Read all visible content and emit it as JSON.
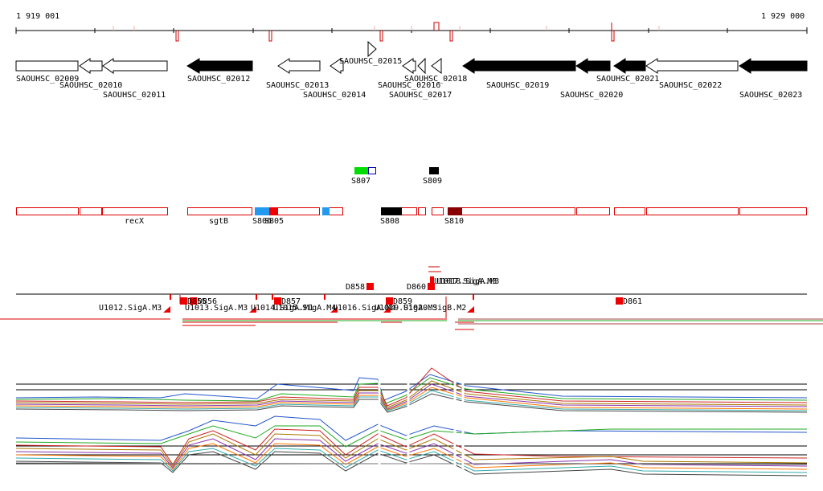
{
  "ruler": {
    "start_label": "1 919 001",
    "end_label": "1 929 000"
  },
  "genes": [
    {
      "id": "SAOUHSC_02009",
      "strand": "+",
      "filled": false
    },
    {
      "id": "SAOUHSC_02010",
      "strand": "-",
      "filled": false
    },
    {
      "id": "SAOUHSC_02011",
      "strand": "-",
      "filled": false
    },
    {
      "id": "SAOUHSC_02012",
      "strand": "-",
      "filled": true
    },
    {
      "id": "SAOUHSC_02013",
      "strand": "-",
      "filled": false
    },
    {
      "id": "SAOUHSC_02014",
      "strand": "-",
      "filled": false
    },
    {
      "id": "SAOUHSC_02015",
      "strand": "+",
      "filled": false
    },
    {
      "id": "SAOUHSC_02016",
      "strand": "-",
      "filled": false
    },
    {
      "id": "SAOUHSC_02017",
      "strand": "-",
      "filled": false
    },
    {
      "id": "SAOUHSC_02018",
      "strand": "-",
      "filled": false
    },
    {
      "id": "SAOUHSC_02019",
      "strand": "-",
      "filled": true
    },
    {
      "id": "SAOUHSC_02020",
      "strand": "-",
      "filled": true
    },
    {
      "id": "SAOUHSC_02021",
      "strand": "-",
      "filled": true
    },
    {
      "id": "SAOUHSC_02022",
      "strand": "-",
      "filled": false
    },
    {
      "id": "SAOUHSC_02023",
      "strand": "-",
      "filled": true
    }
  ],
  "segments_upper": [
    {
      "label": "S807",
      "colors": [
        "#00dd00",
        "#0000aa"
      ]
    },
    {
      "label": "S809",
      "colors": [
        "#000000"
      ]
    }
  ],
  "segments_lower": [
    {
      "label": "recX",
      "type": "gene-name"
    },
    {
      "label": "sgtB",
      "type": "gene-name"
    },
    {
      "label": "S806",
      "type": "segment",
      "color": "#2299ee"
    },
    {
      "label": "S805",
      "type": "segment",
      "color": "#ee0000"
    },
    {
      "label": "S808",
      "type": "segment",
      "color": "#000000"
    },
    {
      "label": "S810",
      "type": "segment",
      "color": "#880000"
    }
  ],
  "features": [
    {
      "label": "D858"
    },
    {
      "label": "D860"
    },
    {
      "label": "U1017.SigA.M3"
    },
    {
      "label": "U1018.SigA.M3"
    },
    {
      "label": "U1012.SigA.M3"
    },
    {
      "label": "U1013.SigA.M3"
    },
    {
      "label": "D855"
    },
    {
      "label": "D856"
    },
    {
      "label": "D857"
    },
    {
      "label": "U1014.SigA.M1"
    },
    {
      "label": "U1015.SigA.M4"
    },
    {
      "label": "U1016.SigA.M4"
    },
    {
      "label": "D859"
    },
    {
      "label": "U1019.SigA.M3"
    },
    {
      "label": "U1020.SigB.M2"
    },
    {
      "label": "D861"
    }
  ],
  "palette": {
    "gene_outline": "#000000",
    "segment_outline": "#dd0000",
    "feature_red": "#ee0000",
    "track_green": "#22aa22"
  }
}
